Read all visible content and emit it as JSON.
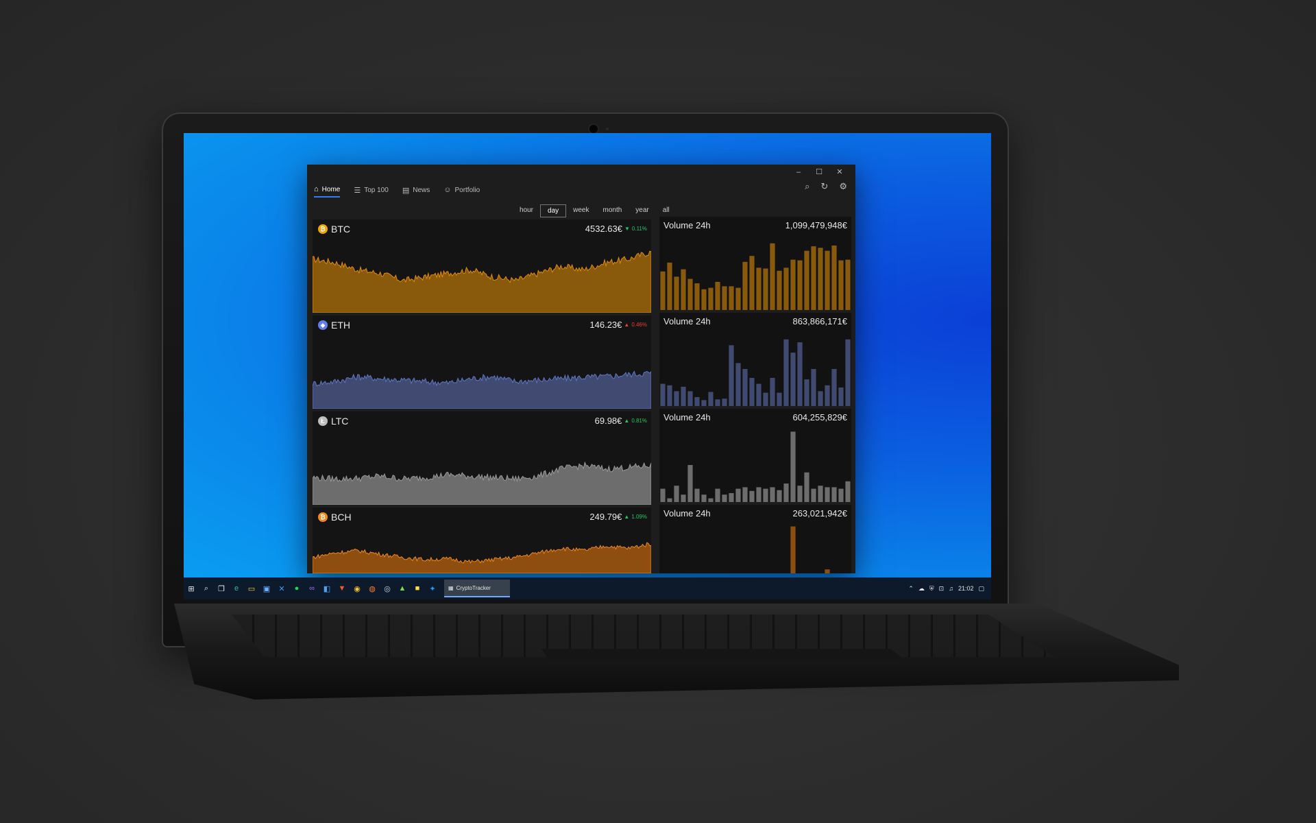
{
  "window": {
    "minimize_glyph": "–",
    "maximize_glyph": "☐",
    "close_glyph": "✕"
  },
  "nav": {
    "items": [
      {
        "label": "Home",
        "icon": "home-icon"
      },
      {
        "label": "Top 100",
        "icon": "list-icon"
      },
      {
        "label": "News",
        "icon": "news-icon"
      },
      {
        "label": "Portfolio",
        "icon": "person-icon"
      }
    ],
    "active": "Home"
  },
  "toolbar": {
    "icons": [
      "search-icon",
      "refresh-icon",
      "gear-icon"
    ]
  },
  "time_ranges": {
    "options": [
      "hour",
      "day",
      "week",
      "month",
      "year",
      "all"
    ],
    "selected": "day"
  },
  "coins": [
    {
      "symbol": "BTC",
      "price": "4532.63€",
      "change": "0.11%",
      "direction": "down",
      "color": "#e38d0b",
      "fill": "#8a5a0c",
      "volume_label": "Volume 24h",
      "volume": "1,099,479,948€",
      "volume_bars": [
        0.52,
        0.64,
        0.45,
        0.55,
        0.42,
        0.36,
        0.28,
        0.3,
        0.38,
        0.32,
        0.32,
        0.3,
        0.65,
        0.73,
        0.57,
        0.56,
        0.9,
        0.53,
        0.57,
        0.68,
        0.67,
        0.8,
        0.86,
        0.84,
        0.8,
        0.87,
        0.67,
        0.68
      ]
    },
    {
      "symbol": "ETH",
      "price": "146.23€",
      "change": "0.46%",
      "direction": "up",
      "color": "#5f78c8",
      "fill": "#414a70",
      "volume_label": "Volume 24h",
      "volume": "863,866,171€",
      "volume_bars": [
        0.3,
        0.28,
        0.2,
        0.26,
        0.2,
        0.12,
        0.08,
        0.19,
        0.09,
        0.1,
        0.82,
        0.58,
        0.5,
        0.38,
        0.3,
        0.18,
        0.38,
        0.18,
        0.9,
        0.72,
        0.86,
        0.36,
        0.5,
        0.2,
        0.28,
        0.5,
        0.25,
        0.9
      ]
    },
    {
      "symbol": "LTC",
      "price": "69.98€",
      "change": "0.81%",
      "direction": "up",
      "color": "#9a9a9a",
      "fill": "#6d6d6d",
      "volume_label": "Volume 24h",
      "volume": "604,255,829€",
      "volume_bars": [
        0.18,
        0.05,
        0.22,
        0.1,
        0.5,
        0.18,
        0.1,
        0.05,
        0.18,
        0.1,
        0.12,
        0.18,
        0.2,
        0.15,
        0.2,
        0.18,
        0.2,
        0.16,
        0.25,
        0.95,
        0.22,
        0.4,
        0.18,
        0.22,
        0.2,
        0.2,
        0.18,
        0.28
      ]
    },
    {
      "symbol": "BCH",
      "price": "249.79€",
      "change": "1.09%",
      "direction": "up",
      "color": "#f08a1c",
      "fill": "#8d4e10",
      "volume_label": "Volume 24h",
      "volume": "263,021,942€",
      "volume_bars": [
        0,
        0,
        0,
        0,
        0,
        0,
        0,
        0,
        0,
        0,
        0,
        0,
        0,
        0,
        0,
        0,
        0,
        0,
        0,
        0.95,
        0,
        0,
        0,
        0,
        0.08,
        0,
        0,
        0
      ]
    }
  ],
  "taskbar": {
    "app_label": "CryptoTracker",
    "time": "21:02",
    "pinned_icons": [
      "windows-start-icon",
      "search-icon",
      "task-view-icon",
      "edge-icon",
      "file-explorer-icon",
      "store-icon",
      "vscode-icon",
      "spotify-icon",
      "visual-studio-icon",
      "vs-code-insiders-icon",
      "brave-icon",
      "chrome-icon",
      "firefox-icon",
      "steam-icon",
      "android-studio-icon",
      "sticky-notes-icon",
      "twitter-icon"
    ]
  }
}
